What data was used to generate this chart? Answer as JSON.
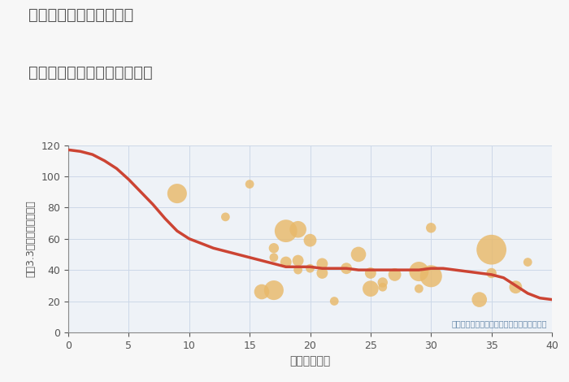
{
  "title_line1": "兵庫県姫路市北新在家の",
  "title_line2": "築年数別中古マンション価格",
  "xlabel": "築年数（年）",
  "ylabel": "坪（3.3㎡）単価（万円）",
  "annotation": "円の大きさは、取引のあった物件面積を示す",
  "xlim": [
    0,
    40
  ],
  "ylim": [
    0,
    120
  ],
  "xticks": [
    0,
    5,
    10,
    15,
    20,
    25,
    30,
    35,
    40
  ],
  "yticks": [
    0,
    20,
    40,
    60,
    80,
    100,
    120
  ],
  "background_color": "#f7f7f7",
  "plot_bg_color": "#eef2f7",
  "line_color": "#cc4433",
  "line_x": [
    0,
    1,
    2,
    3,
    4,
    5,
    6,
    7,
    8,
    9,
    10,
    11,
    12,
    13,
    14,
    15,
    16,
    17,
    18,
    19,
    20,
    21,
    22,
    23,
    24,
    25,
    26,
    27,
    28,
    29,
    30,
    31,
    32,
    33,
    34,
    35,
    36,
    37,
    38,
    39,
    40
  ],
  "line_y": [
    117,
    116,
    114,
    110,
    105,
    98,
    90,
    82,
    73,
    65,
    60,
    57,
    54,
    52,
    50,
    48,
    46,
    44,
    42,
    42,
    42,
    41,
    41,
    41,
    40,
    40,
    40,
    40,
    40,
    40,
    41,
    41,
    40,
    39,
    38,
    37,
    35,
    30,
    25,
    22,
    21
  ],
  "scatter_x": [
    9,
    13,
    15,
    16,
    17,
    17,
    17,
    18,
    18,
    19,
    19,
    19,
    20,
    20,
    21,
    21,
    22,
    23,
    24,
    25,
    25,
    26,
    26,
    27,
    29,
    29,
    30,
    30,
    34,
    35,
    35,
    37,
    38
  ],
  "scatter_y": [
    89,
    74,
    95,
    26,
    54,
    48,
    27,
    65,
    45,
    66,
    46,
    40,
    59,
    41,
    44,
    38,
    20,
    41,
    50,
    28,
    38,
    32,
    29,
    37,
    39,
    28,
    67,
    36,
    21,
    53,
    38,
    29,
    45
  ],
  "scatter_size": [
    300,
    60,
    60,
    180,
    80,
    60,
    300,
    400,
    100,
    220,
    100,
    60,
    130,
    60,
    100,
    100,
    60,
    100,
    180,
    200,
    100,
    80,
    60,
    130,
    300,
    60,
    80,
    380,
    180,
    700,
    80,
    130,
    60
  ],
  "scatter_color": "#e8b96a",
  "scatter_alpha": 0.82,
  "title_color": "#555555",
  "axis_color": "#888888",
  "tick_color": "#555555",
  "grid_color": "#ccd8e8",
  "annotation_color": "#6688aa"
}
